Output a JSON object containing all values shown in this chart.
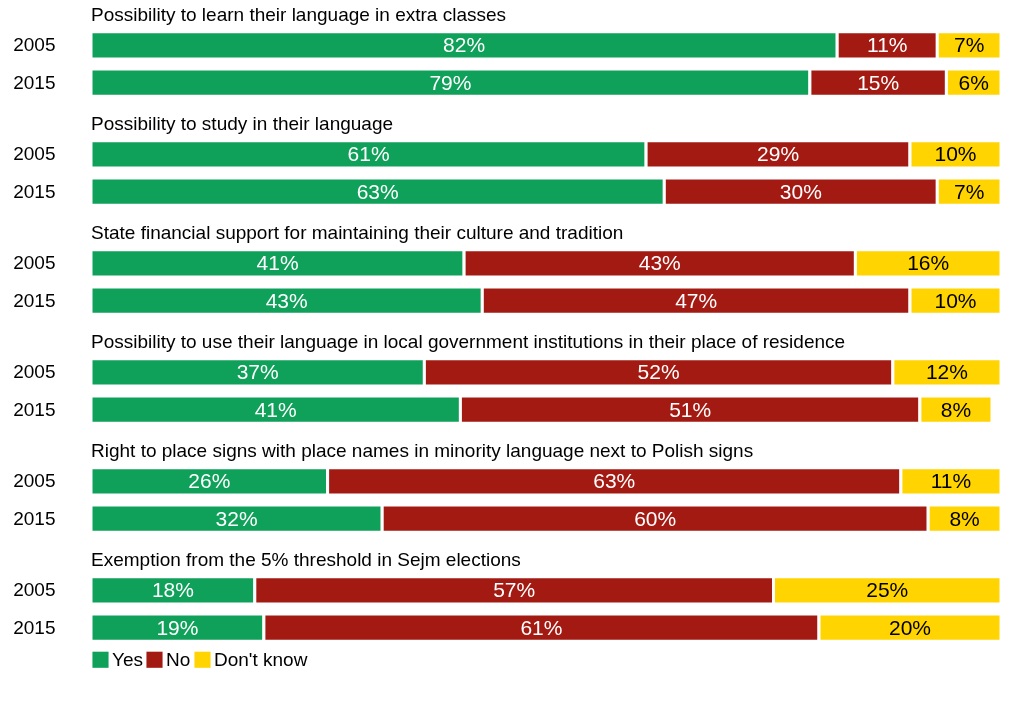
{
  "chart_data": [
    {
      "type": "bar",
      "orientation": "horizontal",
      "stacked": true,
      "title": "Possibility to learn their language in extra classes",
      "categories": [
        "2005",
        "2015"
      ],
      "xlim": [
        0,
        100
      ],
      "legend": false,
      "series": [
        {
          "color": "#0fa05a",
          "values": [
            82,
            79
          ],
          "value_labels": [
            "82%",
            "79%"
          ]
        },
        {
          "color": "#a31a12",
          "values": [
            11,
            15
          ],
          "value_labels": [
            "11%",
            "15%"
          ]
        },
        {
          "color": "#ffd400",
          "values": [
            7,
            6
          ],
          "value_labels": [
            "7%",
            "6%"
          ]
        }
      ]
    },
    {
      "type": "bar",
      "orientation": "horizontal",
      "stacked": true,
      "title": "Possibility to study in their language",
      "categories": [
        "2005",
        "2015"
      ],
      "xlim": [
        0,
        100
      ],
      "legend": false,
      "series": [
        {
          "color": "#0fa05a",
          "values": [
            61,
            63
          ],
          "value_labels": [
            "61%",
            "63%"
          ]
        },
        {
          "color": "#a31a12",
          "values": [
            29,
            30
          ],
          "value_labels": [
            "29%",
            "30%"
          ]
        },
        {
          "color": "#ffd400",
          "values": [
            10,
            7
          ],
          "value_labels": [
            "10%",
            "7%"
          ]
        }
      ]
    },
    {
      "type": "bar",
      "orientation": "horizontal",
      "stacked": true,
      "title": "State financial support for maintaining their culture and tradition",
      "categories": [
        "2005",
        "2015"
      ],
      "xlim": [
        0,
        100
      ],
      "legend": false,
      "series": [
        {
          "color": "#0fa05a",
          "values": [
            41,
            43
          ],
          "value_labels": [
            "41%",
            "43%"
          ]
        },
        {
          "color": "#a31a12",
          "values": [
            43,
            47
          ],
          "value_labels": [
            "43%",
            "47%"
          ]
        },
        {
          "color": "#ffd400",
          "values": [
            16,
            10
          ],
          "value_labels": [
            "16%",
            "10%"
          ]
        }
      ]
    },
    {
      "type": "bar",
      "orientation": "horizontal",
      "stacked": true,
      "title": "Possibility to use their language in local government institutions in their place of residence",
      "categories": [
        "2005",
        "2015"
      ],
      "xlim": [
        0,
        101
      ],
      "legend": false,
      "series": [
        {
          "color": "#0fa05a",
          "values": [
            37,
            41
          ],
          "value_labels": [
            "37%",
            "41%"
          ]
        },
        {
          "color": "#a31a12",
          "values": [
            52,
            51
          ],
          "value_labels": [
            "52%",
            "51%"
          ]
        },
        {
          "color": "#ffd400",
          "values": [
            12,
            8
          ],
          "value_labels": [
            "12%",
            "8%"
          ]
        }
      ]
    },
    {
      "type": "bar",
      "orientation": "horizontal",
      "stacked": true,
      "title": "Right to place signs with place names in minority language next to Polish signs",
      "categories": [
        "2005",
        "2015"
      ],
      "xlim": [
        0,
        100
      ],
      "legend": false,
      "series": [
        {
          "color": "#0fa05a",
          "values": [
            26,
            32
          ],
          "value_labels": [
            "26%",
            "32%"
          ]
        },
        {
          "color": "#a31a12",
          "values": [
            63,
            60
          ],
          "value_labels": [
            "63%",
            "60%"
          ]
        },
        {
          "color": "#ffd400",
          "values": [
            11,
            8
          ],
          "value_labels": [
            "11%",
            "8%"
          ]
        }
      ]
    },
    {
      "type": "bar",
      "orientation": "horizontal",
      "stacked": true,
      "title": "Exemption from the 5% threshold in Sejm elections",
      "categories": [
        "2005",
        "2015"
      ],
      "xlim": [
        0,
        100
      ],
      "legend": "bottom",
      "series": [
        {
          "name": "Yes",
          "color": "#0fa05a",
          "values": [
            18,
            19
          ],
          "value_labels": [
            "18%",
            "19%"
          ]
        },
        {
          "name": "No",
          "color": "#a31a12",
          "values": [
            57,
            61
          ],
          "value_labels": [
            "57%",
            "61%"
          ]
        },
        {
          "name": "Don't know",
          "color": "#ffd400",
          "values": [
            25,
            20
          ],
          "value_labels": [
            "25%",
            "20%"
          ]
        }
      ]
    }
  ]
}
